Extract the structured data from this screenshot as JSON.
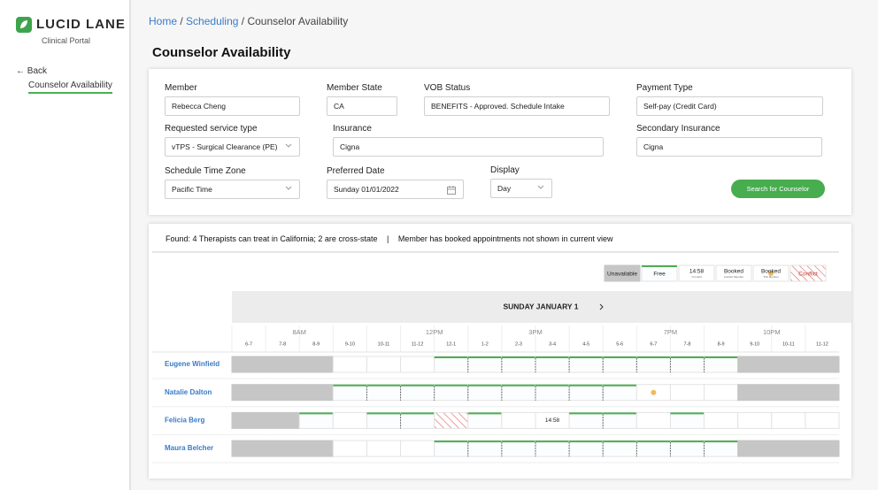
{
  "sidebar": {
    "brand": "LUCID LANE",
    "subtitle": "Clinical Portal",
    "back": "← Back",
    "nav_item": "Counselor Availability"
  },
  "breadcrumb": {
    "items": [
      "Home",
      "Scheduling",
      "Counselor Availability"
    ],
    "separator": "/"
  },
  "title": "Counselor Availability",
  "form": {
    "fields": [
      {
        "label": "Member",
        "value": "Rebecca Cheng"
      },
      {
        "label": "Member State",
        "value": "CA"
      },
      {
        "label": "VOB Status",
        "value": "BENEFITS - Approved. Schedule Intake"
      },
      {
        "label": "Payment Type",
        "value": "Self-pay (Credit Card)"
      },
      {
        "label": "Requested service type",
        "value": "vTPS - Surgical Clearance (PE)"
      },
      {
        "label": "Insurance",
        "value": "Cigna"
      },
      {
        "label": "Secondary Insurance",
        "value": "Cigna"
      },
      {
        "label": "Schedule Time Zone",
        "value": "Pacific Time"
      },
      {
        "label": "Preferred Date",
        "value": "Sunday 01/01/2022"
      },
      {
        "label": "Display",
        "value": "Day"
      }
    ],
    "button": "Search for Counselor"
  },
  "results": {
    "summary": "Found: 4 Therapists can treat in California; 2 are cross-state",
    "divider": "|",
    "note": "Member has booked appointments not shown in current view",
    "legend": [
      {
        "label": "Unavailable",
        "state": "unavailable"
      },
      {
        "label": "Free",
        "state": "free"
      },
      {
        "label": "14:58",
        "sublabel": "On Hold",
        "state": "empty"
      },
      {
        "label": "Booked",
        "sublabel": "Another Member",
        "state": "empty"
      },
      {
        "label": "Booked",
        "sublabel": "This Member",
        "state": "member"
      },
      {
        "label": "Conflict",
        "state": "conflict"
      }
    ],
    "day": "SUNDAY JANUARY 1",
    "hours": [
      null,
      null,
      "8AM",
      null,
      null,
      null,
      "12PM",
      null,
      null,
      "3PM",
      null,
      null,
      null,
      "7PM",
      null,
      null,
      "10PM",
      null
    ],
    "slots": [
      "6-7",
      "7-8",
      "8-9",
      "9-10",
      "10-11",
      "11-12",
      "12-1",
      "1-2",
      "2-3",
      "3-4",
      "4-5",
      "5-6",
      "6-7",
      "7-8",
      "8-9",
      "9-10",
      "10-11",
      "11-12"
    ],
    "rows": [
      {
        "name": "Eugene Winfield",
        "slots": [
          "unavailable",
          "unavailable",
          "unavailable",
          "empty",
          "empty",
          "empty",
          "free",
          "free",
          "free",
          "free",
          "free",
          "free",
          "free",
          "free",
          "free",
          "unavailable",
          "unavailable",
          "unavailable"
        ]
      },
      {
        "name": "Natalie Dalton",
        "slots": [
          "unavailable",
          "unavailable",
          "unavailable",
          "free",
          "free",
          "free",
          "free",
          "free",
          "free",
          "free",
          "free",
          "free",
          "member",
          "empty",
          "empty",
          "unavailable",
          "unavailable",
          "unavailable"
        ]
      },
      {
        "name": "Felicia Berg",
        "slots": [
          "unavailable",
          "unavailable",
          "free",
          "empty",
          "free",
          "free",
          "conflict",
          "free",
          "empty",
          {
            "state": "hold",
            "label": "14:58"
          },
          "free",
          "free",
          "empty",
          "free",
          "empty",
          "empty",
          "empty",
          "empty"
        ]
      },
      {
        "name": "Maura Belcher",
        "slots": [
          "unavailable",
          "unavailable",
          "unavailable",
          "empty",
          "empty",
          "empty",
          "free",
          "free",
          "free",
          "free",
          "free",
          "free",
          "free",
          "free",
          "free",
          "unavailable",
          "unavailable",
          "unavailable"
        ]
      }
    ]
  }
}
